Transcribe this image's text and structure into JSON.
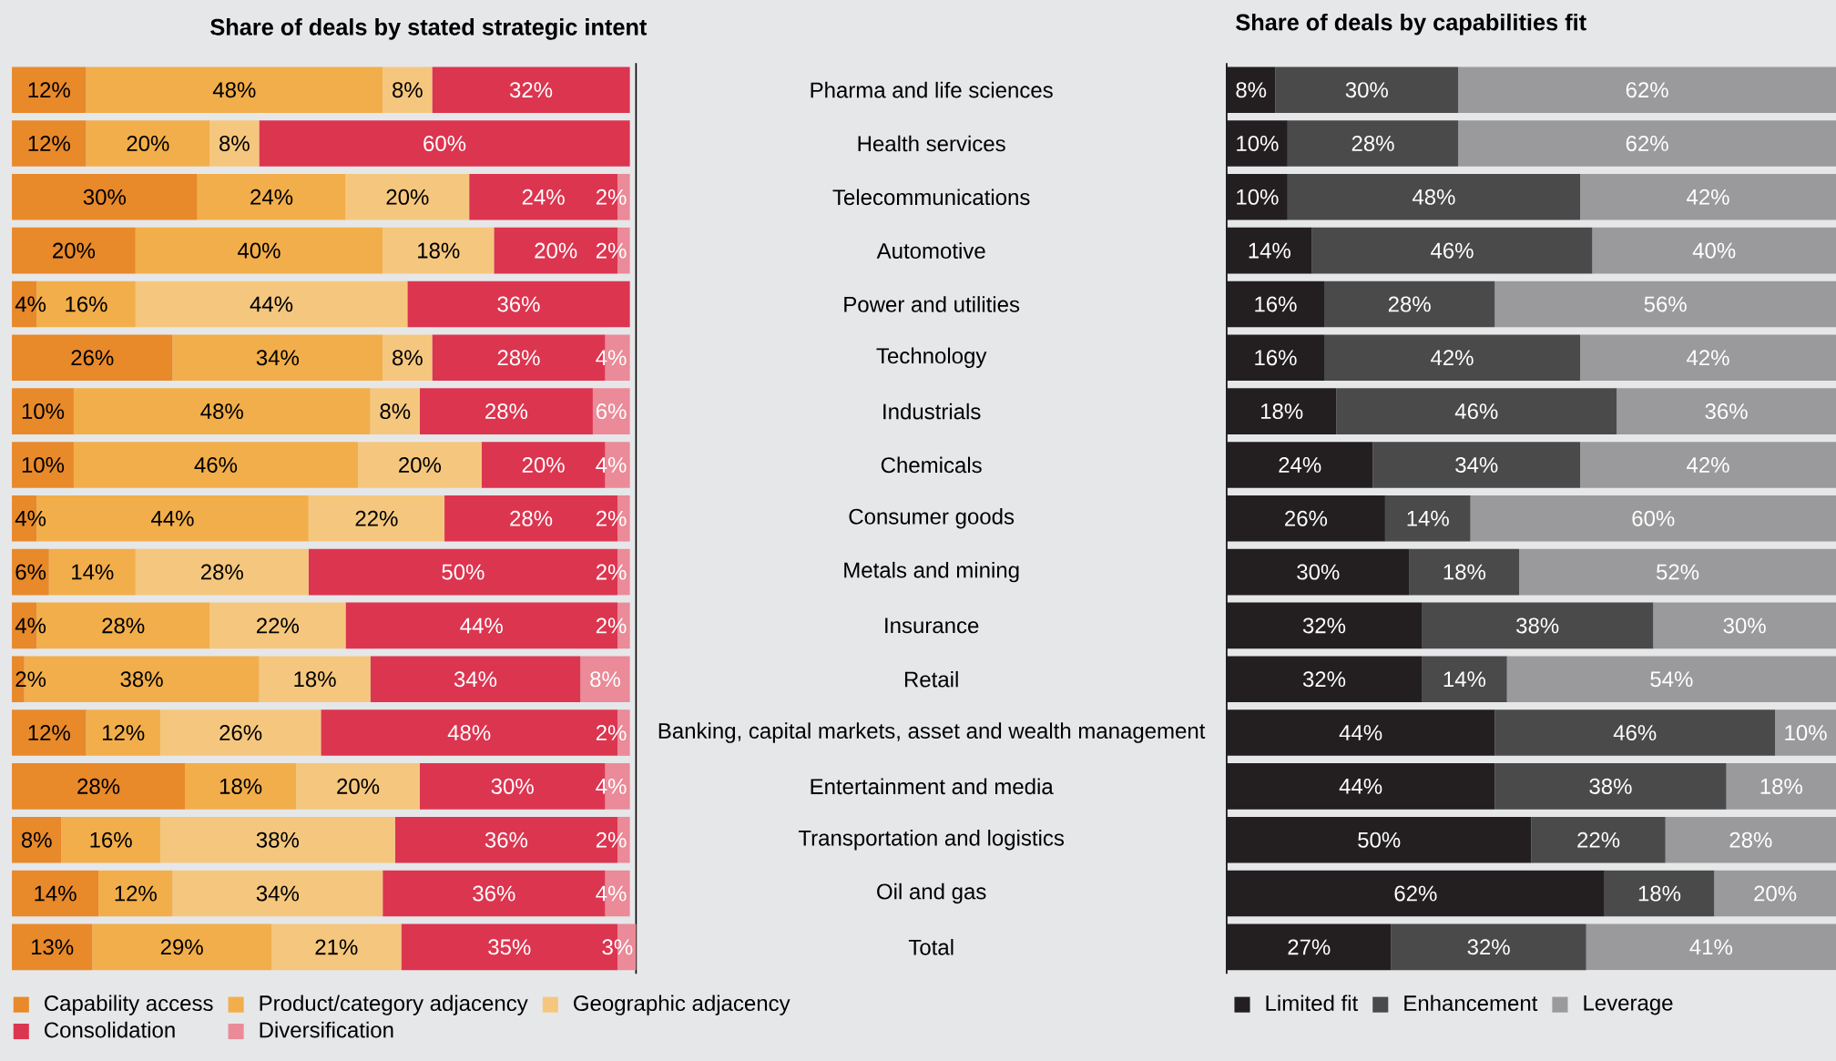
{
  "chart_data": [
    {
      "type": "bar",
      "orientation": "horizontal",
      "stacked": true,
      "title": "Share of deals by stated strategic intent",
      "categories": [
        "Pharma and life sciences",
        "Health services",
        "Telecommunications",
        "Automotive",
        "Power and utilities",
        "Technology",
        "Industrials",
        "Chemicals",
        "Consumer goods",
        "Metals and mining",
        "Insurance",
        "Retail",
        "Banking, capital markets, asset and wealth management",
        "Entertainment and media",
        "Transportation and logistics",
        "Oil and gas",
        "Total"
      ],
      "xlim": [
        0,
        101
      ],
      "tick_labels": "y",
      "legend": "bottom",
      "series": [
        {
          "name": "Capability access",
          "color": "#e8892a",
          "values": [
            12,
            12,
            30,
            20,
            4,
            26,
            10,
            10,
            4,
            6,
            4,
            2,
            12,
            28,
            8,
            14,
            13
          ],
          "value_labels": [
            "12%",
            "12%",
            "30%",
            "20%",
            "4%",
            "26%",
            "10%",
            "10%",
            "4%",
            "6%",
            "4%",
            "2%",
            "12%",
            "28%",
            "8%",
            "14%",
            "13%"
          ]
        },
        {
          "name": "Product/category adjacency",
          "color": "#f2ae4a",
          "values": [
            48,
            20,
            24,
            40,
            16,
            34,
            48,
            46,
            44,
            14,
            28,
            38,
            12,
            18,
            16,
            12,
            29
          ],
          "value_labels": [
            "48%",
            "20%",
            "24%",
            "40%",
            "16%",
            "34%",
            "48%",
            "46%",
            "44%",
            "14%",
            "28%",
            "38%",
            "12%",
            "18%",
            "16%",
            "12%",
            "29%"
          ]
        },
        {
          "name": "Geographic adjacency",
          "color": "#f5c77e",
          "values": [
            8,
            8,
            20,
            18,
            44,
            8,
            8,
            20,
            22,
            28,
            22,
            18,
            26,
            20,
            38,
            34,
            21
          ],
          "value_labels": [
            "8%",
            "8%",
            "20%",
            "18%",
            "44%",
            "8%",
            "8%",
            "20%",
            "22%",
            "28%",
            "22%",
            "18%",
            "26%",
            "20%",
            "38%",
            "34%",
            "21%"
          ]
        },
        {
          "name": "Consolidation",
          "color": "#dc3550",
          "values": [
            32,
            60,
            24,
            20,
            36,
            28,
            28,
            20,
            28,
            50,
            44,
            34,
            48,
            30,
            36,
            36,
            35
          ],
          "value_labels": [
            "32%",
            "60%",
            "24%",
            "20%",
            "36%",
            "28%",
            "28%",
            "20%",
            "28%",
            "50%",
            "44%",
            "34%",
            "48%",
            "30%",
            "36%",
            "36%",
            "35%"
          ]
        },
        {
          "name": "Diversification",
          "color": "#eb8a98",
          "values": [
            null,
            null,
            2,
            2,
            null,
            4,
            6,
            4,
            2,
            2,
            2,
            8,
            2,
            4,
            2,
            4,
            3
          ],
          "value_labels": [
            null,
            null,
            "2%",
            "2%",
            null,
            "4%",
            "6%",
            "4%",
            "2%",
            "2%",
            "2%",
            "8%",
            "2%",
            "4%",
            "2%",
            "4%",
            "3%"
          ]
        }
      ]
    },
    {
      "type": "bar",
      "orientation": "horizontal",
      "stacked": true,
      "title": "Share of deals by capabilities fit",
      "categories": [
        null,
        null,
        null,
        null,
        null,
        null,
        null,
        null,
        null,
        null,
        null,
        null,
        null,
        null,
        null,
        null,
        null
      ],
      "xlim": [
        0,
        100
      ],
      "tick_labels": false,
      "legend": "bottom left",
      "series": [
        {
          "name": "Limited fit",
          "color": "#231f20",
          "values": [
            8,
            10,
            10,
            14,
            16,
            16,
            18,
            24,
            26,
            30,
            32,
            32,
            44,
            44,
            50,
            62,
            27
          ],
          "value_labels": [
            "8%",
            "10%",
            "10%",
            "14%",
            "16%",
            "16%",
            "18%",
            "24%",
            "26%",
            "30%",
            "32%",
            "32%",
            "44%",
            "44%",
            "50%",
            "62%",
            "27%"
          ]
        },
        {
          "name": "Enhancement",
          "color": "#4a4a4a",
          "values": [
            30,
            28,
            48,
            46,
            28,
            42,
            46,
            34,
            14,
            18,
            38,
            14,
            46,
            38,
            22,
            18,
            32
          ],
          "value_labels": [
            "30%",
            "28%",
            "48%",
            "46%",
            "28%",
            "42%",
            "46%",
            "34%",
            "14%",
            "18%",
            "38%",
            "14%",
            "46%",
            "38%",
            "22%",
            "18%",
            "32%"
          ]
        },
        {
          "name": "Leverage",
          "color": "#9a9a9c",
          "values": [
            62,
            62,
            42,
            40,
            56,
            42,
            36,
            42,
            60,
            52,
            30,
            54,
            10,
            18,
            28,
            20,
            41
          ],
          "value_labels": [
            "62%",
            "62%",
            "42%",
            "40%",
            "56%",
            "42%",
            "36%",
            "42%",
            "60%",
            "52%",
            "30%",
            "54%",
            "10%",
            "18%",
            "28%",
            "20%",
            "41%"
          ]
        }
      ]
    }
  ]
}
